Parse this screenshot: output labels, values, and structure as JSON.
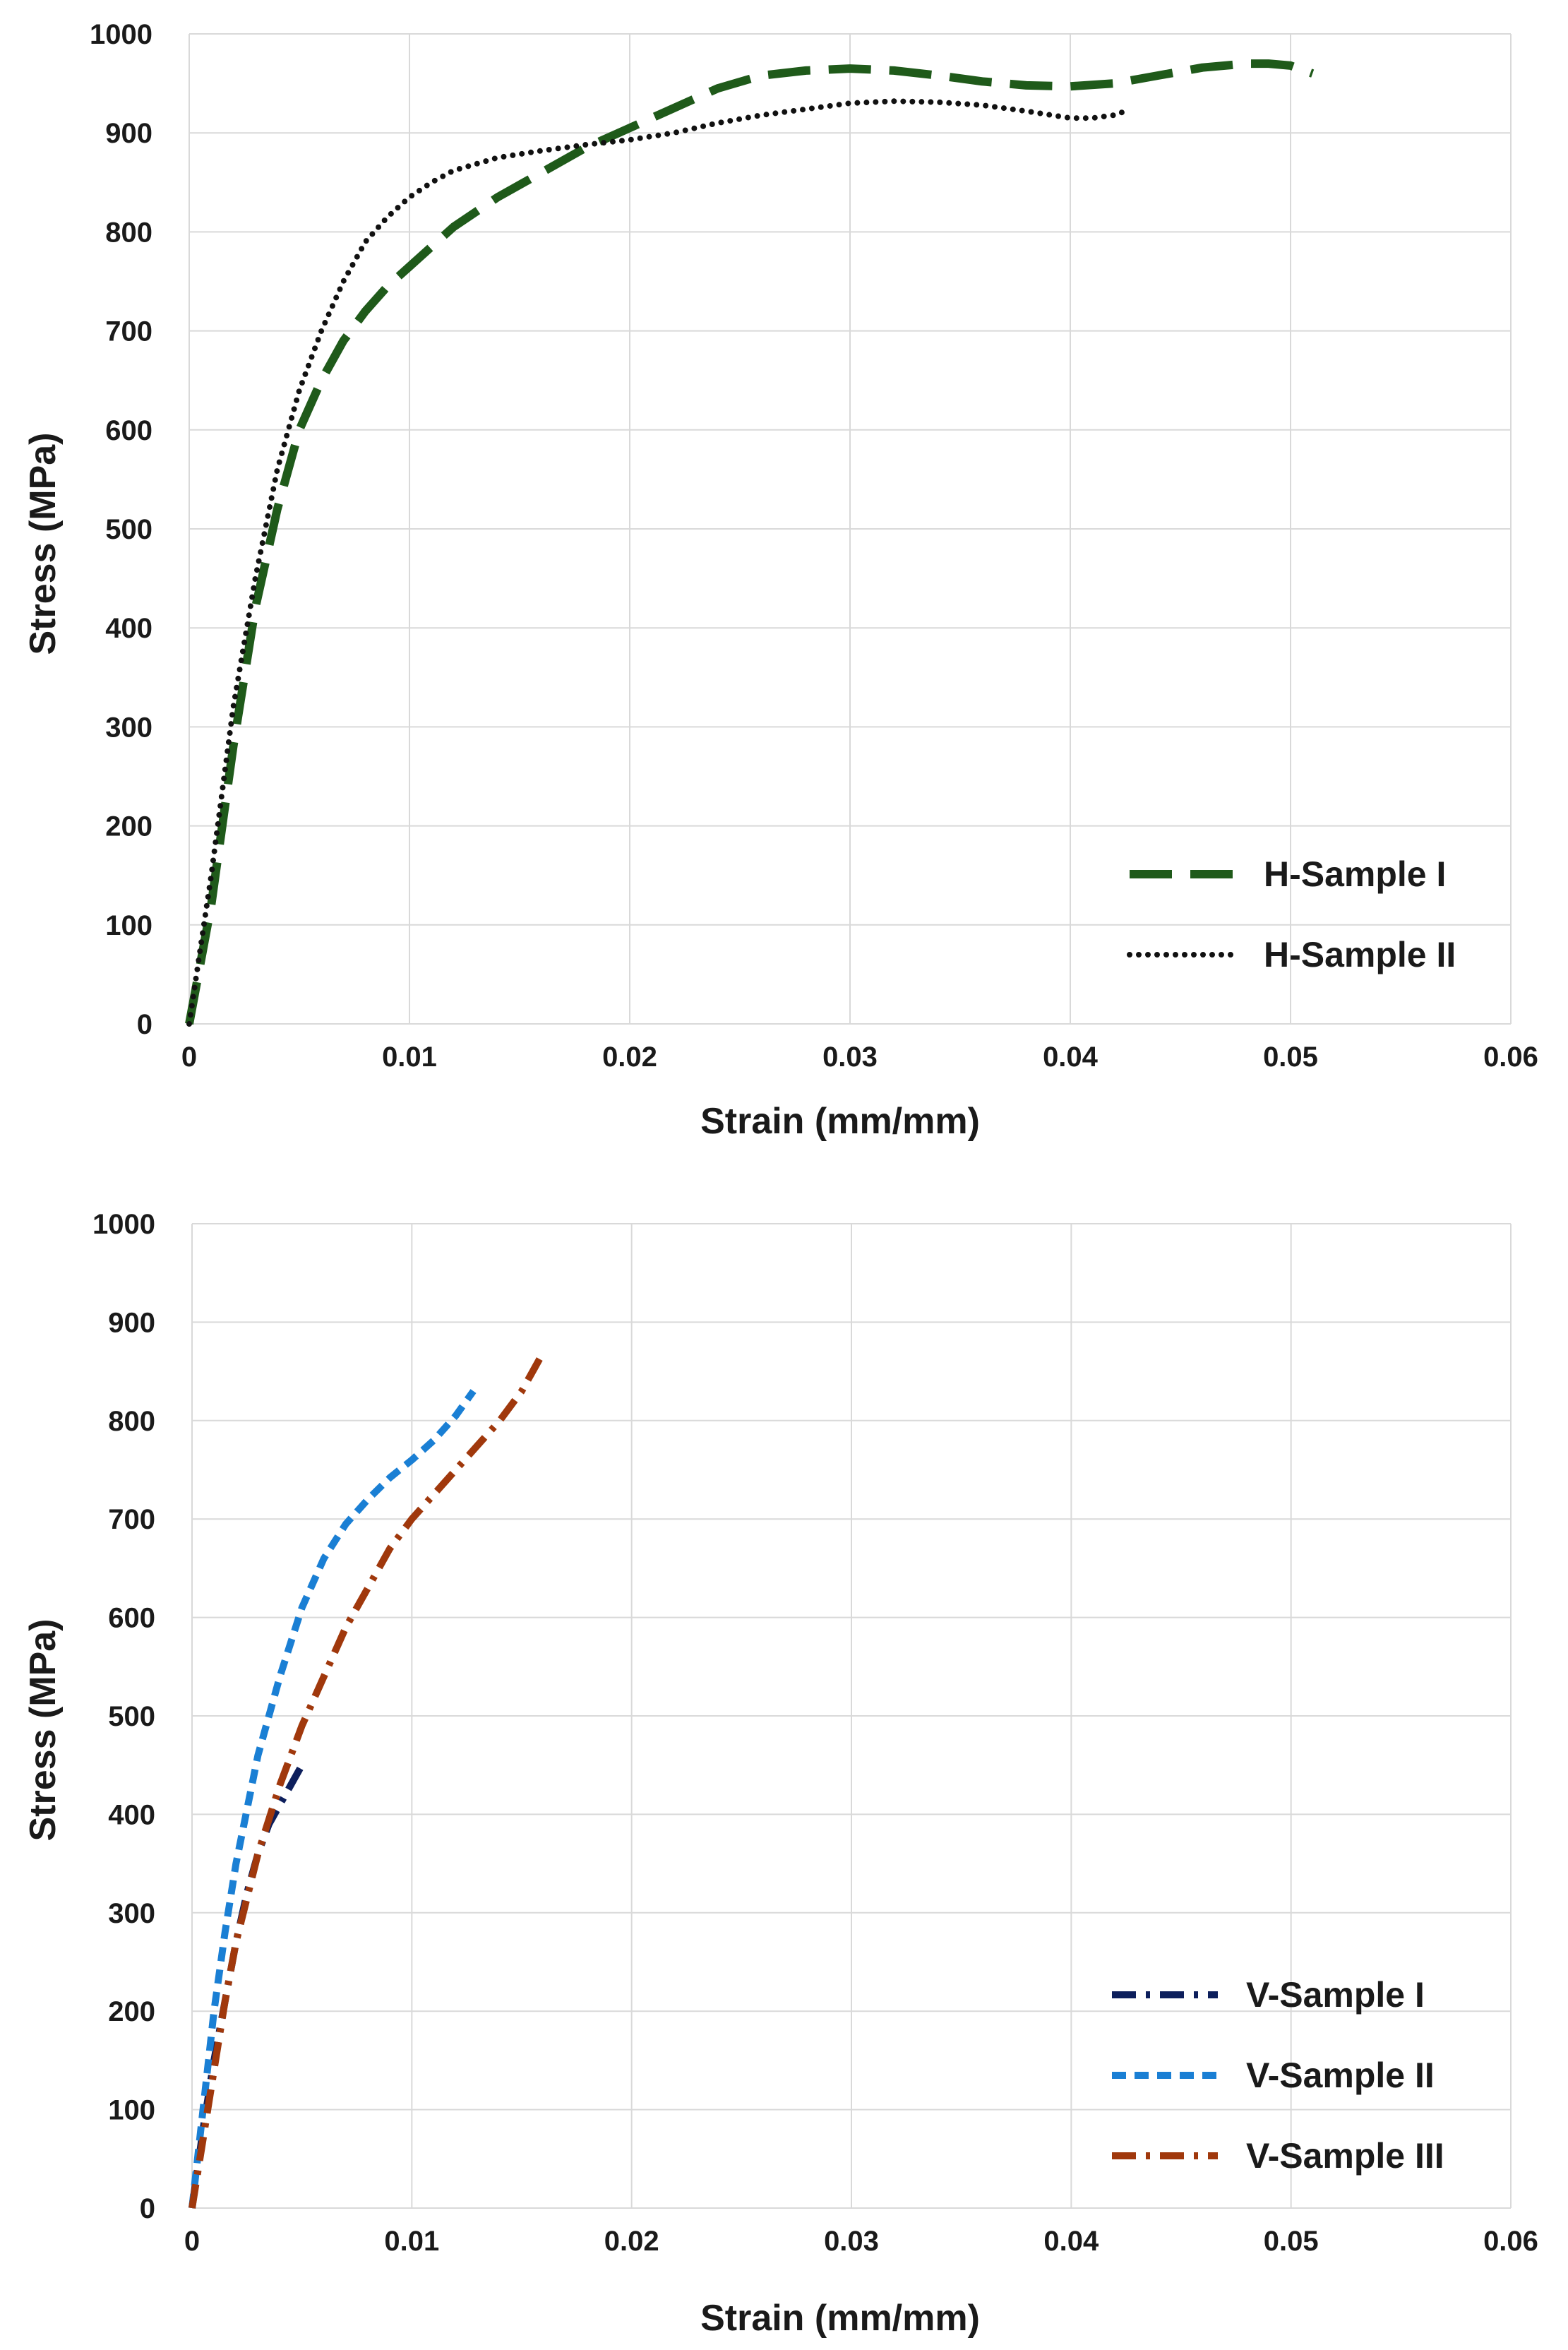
{
  "chart_data": [
    {
      "type": "line",
      "title": "",
      "xlabel": "Strain (mm/mm)",
      "ylabel": "Stress (MPa)",
      "xlim": [
        0,
        0.06
      ],
      "ylim": [
        0,
        1000
      ],
      "xticks": [
        0,
        0.01,
        0.02,
        0.03,
        0.04,
        0.05,
        0.06
      ],
      "xtick_labels": [
        "0",
        "0.01",
        "0.02",
        "0.03",
        "0.04",
        "0.05",
        "0.06"
      ],
      "yticks": [
        0,
        100,
        200,
        300,
        400,
        500,
        600,
        700,
        800,
        900,
        1000
      ],
      "ytick_labels": [
        "0",
        "100",
        "200",
        "300",
        "400",
        "500",
        "600",
        "700",
        "800",
        "900",
        "1000"
      ],
      "grid": true,
      "legend_position": "bottom-right",
      "series": [
        {
          "name": "H-Sample I",
          "color": "#1f5a1a",
          "style": "dashed",
          "x": [
            0,
            0.001,
            0.002,
            0.003,
            0.004,
            0.005,
            0.006,
            0.007,
            0.008,
            0.009,
            0.01,
            0.012,
            0.014,
            0.016,
            0.018,
            0.02,
            0.022,
            0.024,
            0.026,
            0.028,
            0.03,
            0.032,
            0.034,
            0.036,
            0.038,
            0.04,
            0.042,
            0.044,
            0.046,
            0.048,
            0.049,
            0.05,
            0.051
          ],
          "y": [
            0,
            120,
            280,
            420,
            520,
            600,
            650,
            690,
            720,
            745,
            765,
            805,
            835,
            860,
            885,
            905,
            925,
            945,
            958,
            963,
            965,
            963,
            958,
            952,
            948,
            947,
            950,
            958,
            966,
            970,
            970,
            968,
            960
          ]
        },
        {
          "name": "H-Sample II",
          "color": "#111111",
          "style": "dotted",
          "x": [
            0,
            0.001,
            0.002,
            0.003,
            0.004,
            0.005,
            0.006,
            0.007,
            0.008,
            0.009,
            0.01,
            0.011,
            0.012,
            0.014,
            0.016,
            0.018,
            0.02,
            0.022,
            0.024,
            0.026,
            0.028,
            0.03,
            0.032,
            0.034,
            0.036,
            0.038,
            0.04,
            0.041,
            0.042,
            0.0425
          ],
          "y": [
            0,
            150,
            320,
            450,
            560,
            640,
            700,
            750,
            790,
            815,
            835,
            850,
            862,
            875,
            882,
            888,
            893,
            900,
            910,
            918,
            924,
            930,
            932,
            931,
            928,
            922,
            915,
            915,
            918,
            922
          ]
        }
      ]
    },
    {
      "type": "line",
      "title": "",
      "xlabel": "Strain (mm/mm)",
      "ylabel": "Stress (MPa)",
      "xlim": [
        0,
        0.06
      ],
      "ylim": [
        0,
        1000
      ],
      "xticks": [
        0,
        0.01,
        0.02,
        0.03,
        0.04,
        0.05,
        0.06
      ],
      "xtick_labels": [
        "0",
        "0.01",
        "0.02",
        "0.03",
        "0.04",
        "0.05",
        "0.06"
      ],
      "yticks": [
        0,
        100,
        200,
        300,
        400,
        500,
        600,
        700,
        800,
        900,
        1000
      ],
      "ytick_labels": [
        "0",
        "100",
        "200",
        "300",
        "400",
        "500",
        "600",
        "700",
        "800",
        "900",
        "1000"
      ],
      "grid": true,
      "legend_position": "bottom-right",
      "series": [
        {
          "name": "V-Sample I",
          "color": "#0d1f5c",
          "style": "dash-dot",
          "x": [
            0,
            0.0005,
            0.001,
            0.0015,
            0.002,
            0.0025,
            0.003,
            0.0035,
            0.004,
            0.0045,
            0.005
          ],
          "y": [
            0,
            80,
            150,
            210,
            270,
            320,
            360,
            390,
            410,
            430,
            450
          ]
        },
        {
          "name": "V-Sample II",
          "color": "#1a7fd4",
          "style": "short-dash",
          "x": [
            0,
            0.0005,
            0.001,
            0.0015,
            0.002,
            0.003,
            0.004,
            0.005,
            0.006,
            0.007,
            0.008,
            0.009,
            0.01,
            0.011,
            0.012,
            0.0128
          ],
          "y": [
            0,
            100,
            200,
            280,
            350,
            460,
            540,
            610,
            660,
            695,
            720,
            742,
            760,
            780,
            805,
            830
          ]
        },
        {
          "name": "V-Sample III",
          "color": "#a0380c",
          "style": "dash-dot",
          "x": [
            0,
            0.0005,
            0.001,
            0.0015,
            0.002,
            0.003,
            0.004,
            0.005,
            0.006,
            0.007,
            0.008,
            0.009,
            0.01,
            0.011,
            0.012,
            0.013,
            0.014,
            0.015,
            0.016
          ],
          "y": [
            0,
            70,
            140,
            210,
            270,
            360,
            430,
            490,
            540,
            590,
            630,
            670,
            700,
            725,
            750,
            775,
            800,
            830,
            870
          ]
        }
      ]
    }
  ]
}
